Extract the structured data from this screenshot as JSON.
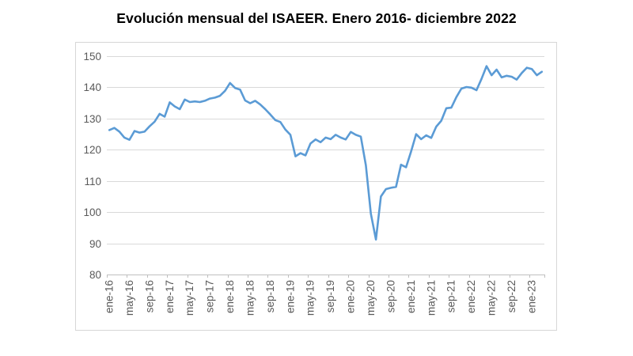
{
  "title": "Evolución mensual del ISAEER. Enero 2016- diciembre 2022",
  "colors": {
    "line": "#5B9BD5",
    "gridline": "#D9D9D9",
    "axis": "#BFBFBF",
    "label": "#595959",
    "frame": "#D7D7D7",
    "title": "#000000"
  },
  "chart_data": {
    "type": "line",
    "title": "Evolución mensual del ISAEER. Enero 2016- diciembre 2022",
    "xlabel": "",
    "ylabel": "",
    "ylim": [
      80,
      150
    ],
    "ytick_step": 10,
    "yticks": [
      80,
      90,
      100,
      110,
      120,
      130,
      140,
      150
    ],
    "x_tick_interval": 4,
    "x_tick_labels": [
      "ene-16",
      "may-16",
      "sep-16",
      "ene-17",
      "may-17",
      "sep-17",
      "ene-18",
      "may-18",
      "sep-18",
      "ene-19",
      "may-19",
      "sep-19",
      "ene-20",
      "may-20",
      "sep-20",
      "ene-21",
      "may-21",
      "sep-21",
      "ene-22",
      "may-22",
      "sep-22",
      "ene-23"
    ],
    "grid": "horizontal-only",
    "legend": "none",
    "line_color": "#5B9BD5",
    "x": [
      "ene-16",
      "feb-16",
      "mar-16",
      "abr-16",
      "may-16",
      "jun-16",
      "jul-16",
      "ago-16",
      "sep-16",
      "oct-16",
      "nov-16",
      "dic-16",
      "ene-17",
      "feb-17",
      "mar-17",
      "abr-17",
      "may-17",
      "jun-17",
      "jul-17",
      "ago-17",
      "sep-17",
      "oct-17",
      "nov-17",
      "dic-17",
      "ene-18",
      "feb-18",
      "mar-18",
      "abr-18",
      "may-18",
      "jun-18",
      "jul-18",
      "ago-18",
      "sep-18",
      "oct-18",
      "nov-18",
      "dic-18",
      "ene-19",
      "feb-19",
      "mar-19",
      "abr-19",
      "may-19",
      "jun-19",
      "jul-19",
      "ago-19",
      "sep-19",
      "oct-19",
      "nov-19",
      "dic-19",
      "ene-20",
      "feb-20",
      "mar-20",
      "abr-20",
      "may-20",
      "jun-20",
      "jul-20",
      "ago-20",
      "sep-20",
      "oct-20",
      "nov-20",
      "dic-20",
      "ene-21",
      "feb-21",
      "mar-21",
      "abr-21",
      "may-21",
      "jun-21",
      "jul-21",
      "ago-21",
      "sep-21",
      "oct-21",
      "nov-21",
      "dic-21",
      "ene-22",
      "feb-22",
      "mar-22",
      "abr-22",
      "may-22",
      "jun-22",
      "jul-22",
      "ago-22",
      "sep-22",
      "oct-22",
      "nov-22",
      "dic-22",
      "ene-23",
      "feb-23",
      "mar-23"
    ],
    "series": [
      {
        "name": "ISAEER",
        "values": [
          126.3,
          127.0,
          125.8,
          123.9,
          123.2,
          126.0,
          125.5,
          125.8,
          127.5,
          129.0,
          131.5,
          130.6,
          135.2,
          133.9,
          133.0,
          136.1,
          135.3,
          135.5,
          135.3,
          135.7,
          136.4,
          136.7,
          137.3,
          138.9,
          141.4,
          139.8,
          139.3,
          135.8,
          134.9,
          135.7,
          134.5,
          133.0,
          131.3,
          129.5,
          128.9,
          126.5,
          124.8,
          117.9,
          118.9,
          118.2,
          122.0,
          123.3,
          122.4,
          123.9,
          123.4,
          124.8,
          123.9,
          123.3,
          125.7,
          124.8,
          124.2,
          115.0,
          99.5,
          91.2,
          105.0,
          107.4,
          107.8,
          108.1,
          115.2,
          114.4,
          119.5,
          125.0,
          123.4,
          124.6,
          123.8,
          127.4,
          129.3,
          133.3,
          133.5,
          136.9,
          139.6,
          140.1,
          139.9,
          139.1,
          142.7,
          146.8,
          143.9,
          145.7,
          143.2,
          143.7,
          143.4,
          142.5,
          144.6,
          146.3,
          145.9,
          143.9,
          145.0
        ]
      }
    ]
  }
}
